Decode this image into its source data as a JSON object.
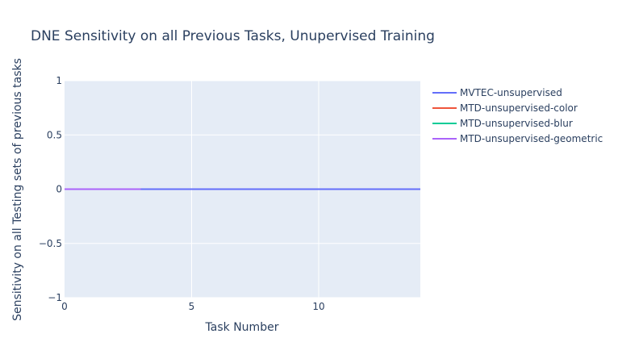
{
  "chart_data": {
    "type": "line",
    "title": "DNE Sensitivity on all Previous Tasks, Unupervised Training",
    "xlabel": "Task Number",
    "ylabel": "Sensitivity on all Testing sets of previous tasks",
    "xlim": [
      0,
      14
    ],
    "ylim": [
      -1,
      1
    ],
    "x_ticks": [
      0,
      5,
      10
    ],
    "x_tick_labels": [
      "0",
      "5",
      "10"
    ],
    "y_ticks": [
      -1,
      -0.5,
      0,
      0.5,
      1
    ],
    "y_tick_labels": [
      "−1",
      "−0.5",
      "0",
      "0.5",
      "1"
    ],
    "grid": true,
    "legend_position": "right",
    "series": [
      {
        "name": "MVTEC-unsupervised",
        "color": "#636efa",
        "x": [
          0,
          1,
          2,
          3,
          4,
          5,
          6,
          7,
          8,
          9,
          10,
          11,
          12,
          13,
          14
        ],
        "y": [
          0,
          0,
          0,
          0,
          0,
          0,
          0,
          0,
          0,
          0,
          0,
          0,
          0,
          0,
          0
        ]
      },
      {
        "name": "MTD-unsupervised-color",
        "color": "#ef553b",
        "x": [
          0,
          1,
          2,
          3
        ],
        "y": [
          0,
          0,
          0,
          0
        ]
      },
      {
        "name": "MTD-unsupervised-blur",
        "color": "#00cc96",
        "x": [
          0,
          1,
          2,
          3
        ],
        "y": [
          0,
          0,
          0,
          0
        ]
      },
      {
        "name": "MTD-unsupervised-geometric",
        "color": "#ab63fa",
        "x": [
          0,
          1,
          2,
          3
        ],
        "y": [
          0,
          0,
          0,
          0
        ]
      }
    ]
  }
}
